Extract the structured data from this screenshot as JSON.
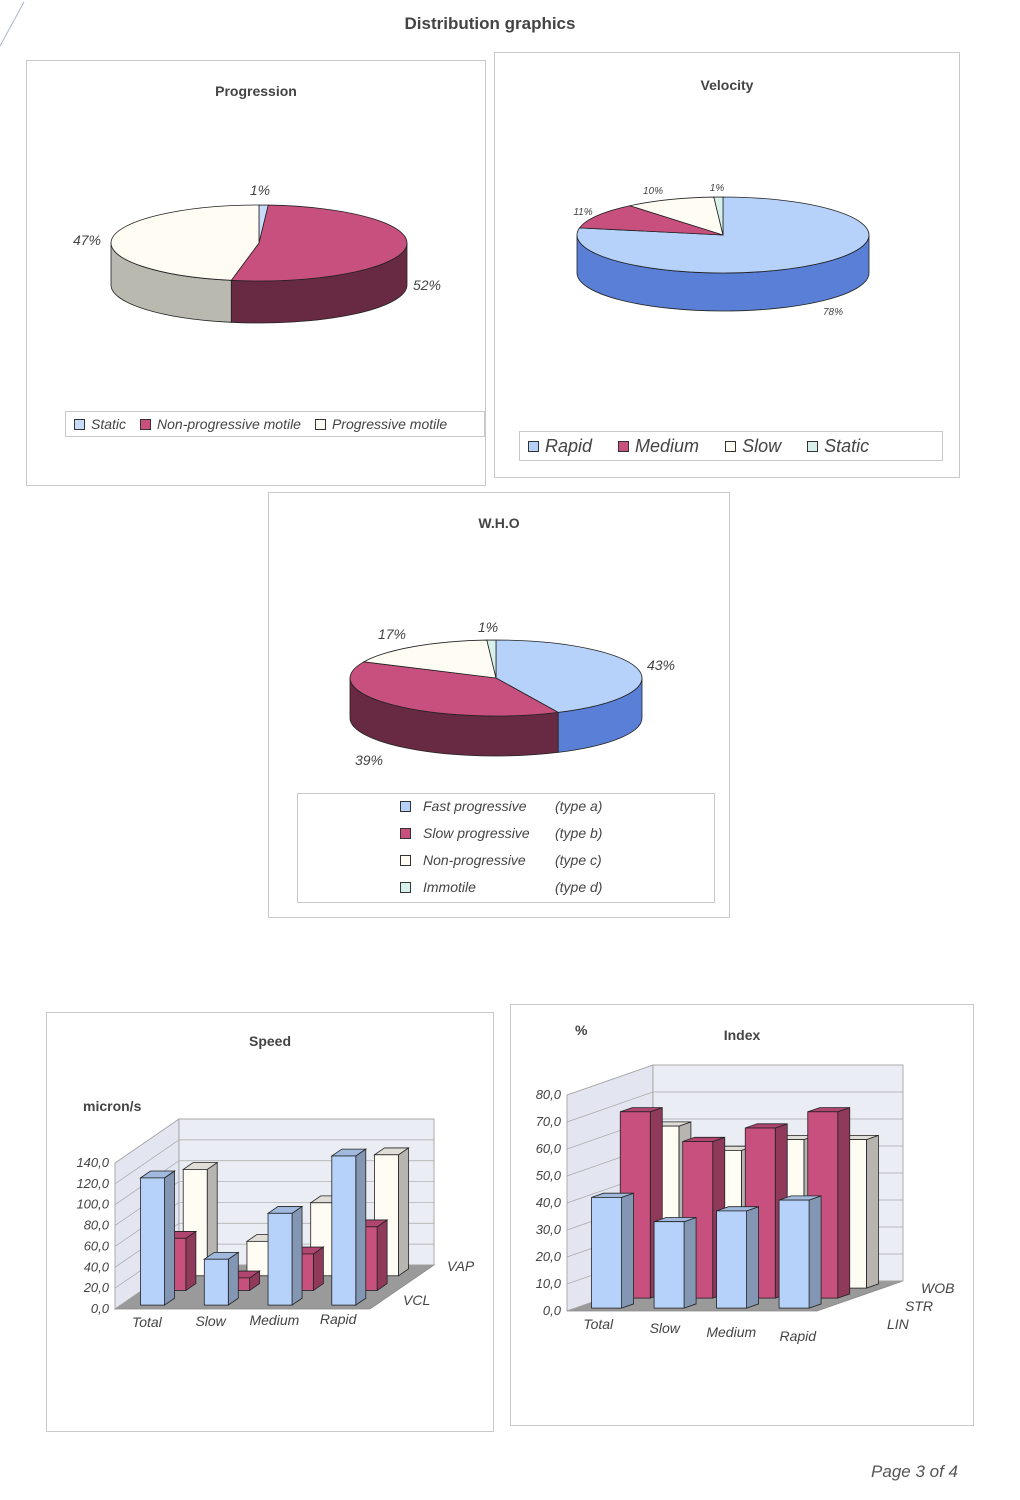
{
  "page": {
    "title": "Distribution graphics",
    "footer": "Page 3 of 4"
  },
  "chart_data": [
    {
      "type": "pie",
      "title": "Progression",
      "slices": [
        {
          "label": "Static",
          "value": 1,
          "display": "1%",
          "color": "#c8dcfa"
        },
        {
          "label": "Non-progressive motile",
          "value": 52,
          "display": "52%",
          "color": "#c8507e"
        },
        {
          "label": "Progressive motile",
          "value": 47,
          "display": "47%",
          "color": "#fffcf4"
        }
      ],
      "legend": [
        "Static",
        "Non-progressive motile",
        "Progressive motile"
      ],
      "legend_position": "bottom"
    },
    {
      "type": "pie",
      "title": "Velocity",
      "slices": [
        {
          "label": "Rapid",
          "value": 78,
          "display": "78%",
          "color": "#b6d2fa"
        },
        {
          "label": "Medium",
          "value": 11,
          "display": "11%",
          "color": "#c8507e"
        },
        {
          "label": "Slow",
          "value": 10,
          "display": "10%",
          "color": "#fffcf4"
        },
        {
          "label": "Static",
          "value": 1,
          "display": "1%",
          "color": "#d8f0ec"
        }
      ],
      "legend": [
        "Rapid",
        "Medium",
        "Slow",
        "Static"
      ],
      "legend_position": "bottom"
    },
    {
      "type": "pie",
      "title": "W.H.O",
      "slices": [
        {
          "label": "Fast progressive",
          "type_label": "(type a)",
          "value": 43,
          "display": "43%",
          "color": "#b6d2fa"
        },
        {
          "label": "Slow progressive",
          "type_label": "(type b)",
          "value": 39,
          "display": "39%",
          "color": "#c8507e"
        },
        {
          "label": "Non-progressive",
          "type_label": "(type c)",
          "value": 17,
          "display": "17%",
          "color": "#fffcf4"
        },
        {
          "label": "Immotile",
          "type_label": "(type d)",
          "value": 1,
          "display": "1%",
          "color": "#d8f0ec"
        }
      ],
      "legend_position": "bottom"
    },
    {
      "type": "bar",
      "title": "Speed",
      "ylabel": "micron/s",
      "categories": [
        "Total",
        "Slow",
        "Medium",
        "Rapid"
      ],
      "series": [
        {
          "name": "VCL",
          "values": [
            122,
            44,
            88,
            143
          ],
          "color": "#b6d2fa"
        },
        {
          "name": "VAP",
          "values": [
            50,
            12,
            35,
            61
          ],
          "color": "#c8507e"
        },
        {
          "name": "",
          "values": [
            102,
            33,
            70,
            116
          ],
          "color": "#fffcf4"
        }
      ],
      "depth_labels": [
        "VCL",
        "VAP"
      ],
      "ylim": [
        0,
        140
      ],
      "yticks": [
        "0,0",
        "20,0",
        "40,0",
        "60,0",
        "80,0",
        "100,0",
        "120,0",
        "140,0"
      ],
      "grid": true
    },
    {
      "type": "bar",
      "title": "Index",
      "ylabel": "%",
      "categories": [
        "Total",
        "Slow",
        "Medium",
        "Rapid"
      ],
      "series": [
        {
          "name": "LIN",
          "values": [
            41,
            32,
            36,
            40
          ],
          "color": "#b6d2fa"
        },
        {
          "name": "STR",
          "values": [
            69,
            58,
            63,
            69
          ],
          "color": "#c8507e"
        },
        {
          "name": "WOB",
          "values": [
            60,
            51,
            55,
            55
          ],
          "color": "#fffcf4"
        }
      ],
      "depth_labels": [
        "LIN",
        "STR",
        "WOB"
      ],
      "ylim": [
        0,
        80
      ],
      "yticks": [
        "0,0",
        "10,0",
        "20,0",
        "30,0",
        "40,0",
        "50,0",
        "60,0",
        "70,0",
        "80,0"
      ],
      "grid": true
    }
  ]
}
